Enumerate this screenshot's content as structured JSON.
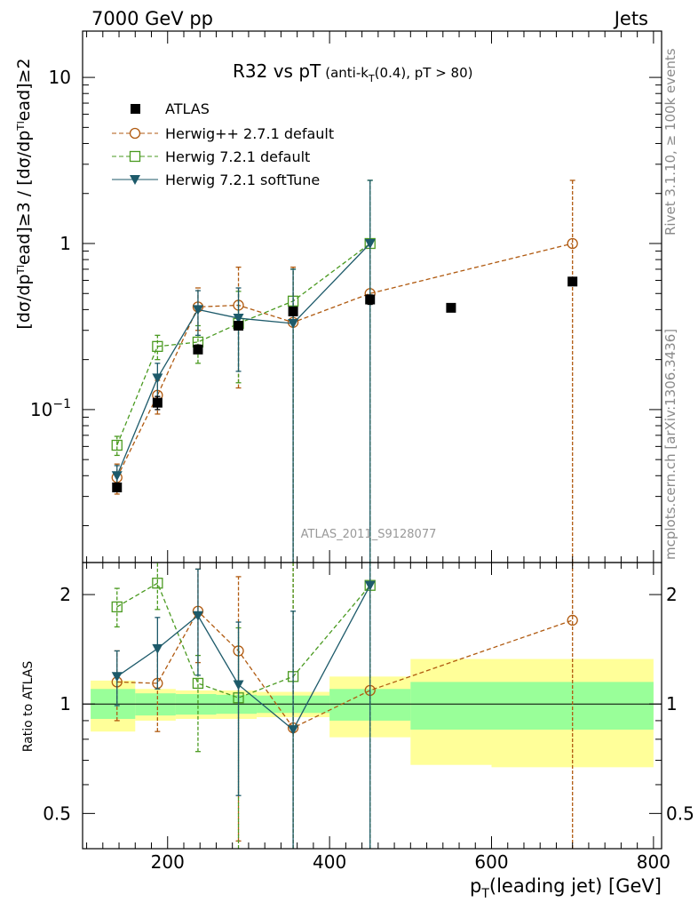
{
  "header": {
    "left": "7000 GeV pp",
    "right": "Jets"
  },
  "side_labels": {
    "rivet": "Rivet 3.1.10, ≥ 100k events",
    "mcplots": "mcplots.cern.ch [arXiv:1306.3436]"
  },
  "analysis_id": "ATLAS_2011_S9128077",
  "chart_data": [
    {
      "type": "scatter",
      "panel": "main",
      "title_main": "R32 vs pT",
      "title_sub": "(anti-k",
      "title_sub_t": "T",
      "title_sub_rest": "(0.4), pT > 80)",
      "ylabel": "[dσ/dpᵀˡead]≥3 / [dσ/dpᵀˡead]≥2",
      "xlabel": "p",
      "xlabel_sub": "T",
      "xlabel_rest": "(leading jet) [GeV]",
      "xlim": [
        95,
        810
      ],
      "ylim": [
        0.012,
        19
      ],
      "yscale": "log",
      "x_ticks": [
        200,
        400,
        600,
        800
      ],
      "y_ticks": [
        {
          "v": 0.1,
          "base": "10",
          "exp": "−1"
        },
        {
          "v": 1,
          "base": "1",
          "exp": ""
        },
        {
          "v": 10,
          "base": "10",
          "exp": ""
        }
      ],
      "legend_position": "top-left",
      "series": [
        {
          "name": "ATLAS",
          "color": "#000000",
          "marker": "square-filled",
          "dash": "none",
          "x": [
            137.5,
            187.5,
            237.5,
            287.5,
            355,
            450,
            550,
            700
          ],
          "y": [
            0.034,
            0.11,
            0.23,
            0.32,
            0.39,
            0.46,
            0.41,
            0.59
          ],
          "err": [
            [
              0.032,
              0.036
            ],
            [
              0.1,
              0.12
            ],
            [
              0.22,
              0.245
            ],
            [
              0.305,
              0.335
            ],
            [
              0.37,
              0.41
            ],
            [
              0.43,
              0.49
            ],
            [
              0.39,
              0.43
            ],
            [
              0.56,
              0.62
            ]
          ]
        },
        {
          "name": "Herwig++ 2.7.1 default",
          "color": "#b05a10",
          "marker": "circle-open",
          "dash": "5,3",
          "x": [
            137.5,
            187.5,
            237.5,
            287.5,
            355,
            450,
            700
          ],
          "y": [
            0.039,
            0.122,
            0.415,
            0.425,
            0.335,
            0.5,
            1.0
          ],
          "err": [
            [
              0.031,
              0.047
            ],
            [
              0.094,
              0.15
            ],
            [
              0.3,
              0.54
            ],
            [
              0.135,
              0.72
            ],
            [
              0.012,
              0.72
            ],
            [
              0.012,
              1.0
            ],
            [
              0.012,
              2.4
            ]
          ]
        },
        {
          "name": "Herwig 7.2.1 default",
          "color": "#4a9a20",
          "marker": "square-open",
          "dash": "5,3",
          "x": [
            137.5,
            187.5,
            237.5,
            287.5,
            355,
            450
          ],
          "y": [
            0.061,
            0.24,
            0.255,
            0.33,
            0.45,
            1.0
          ],
          "err": [
            [
              0.053,
              0.069
            ],
            [
              0.2,
              0.28
            ],
            [
              0.19,
              0.32
            ],
            [
              0.145,
              0.515
            ],
            [
              0.012,
              0.7
            ],
            [
              0.012,
              2.4
            ]
          ]
        },
        {
          "name": "Herwig 7.2.1 softTune",
          "color": "#1d5a6a",
          "marker": "triangle-down",
          "dash": "none",
          "x": [
            137.5,
            187.5,
            237.5,
            287.5,
            355,
            450
          ],
          "y": [
            0.04,
            0.155,
            0.4,
            0.355,
            0.33,
            1.0
          ],
          "err": [
            [
              0.034,
              0.046
            ],
            [
              0.12,
              0.19
            ],
            [
              0.28,
              0.52
            ],
            [
              0.17,
              0.54
            ],
            [
              0.012,
              0.7
            ],
            [
              0.012,
              2.4
            ]
          ]
        }
      ]
    },
    {
      "type": "scatter",
      "panel": "ratio",
      "ylabel": "Ratio to ATLAS",
      "xlim": [
        95,
        810
      ],
      "ylim": [
        0.4,
        2.45
      ],
      "yscale": "log",
      "y_ticks": [
        {
          "v": 0.5,
          "label": "0.5"
        },
        {
          "v": 1,
          "label": "1"
        },
        {
          "v": 2,
          "label": "2"
        }
      ],
      "bands": [
        {
          "x0": 105,
          "x1": 160,
          "inner": [
            0.91,
            1.1
          ],
          "outer": [
            0.84,
            1.16
          ]
        },
        {
          "x0": 160,
          "x1": 210,
          "inner": [
            0.93,
            1.07
          ],
          "outer": [
            0.9,
            1.1
          ]
        },
        {
          "x0": 210,
          "x1": 260,
          "inner": [
            0.935,
            1.065
          ],
          "outer": [
            0.91,
            1.09
          ]
        },
        {
          "x0": 260,
          "x1": 310,
          "inner": [
            0.94,
            1.06
          ],
          "outer": [
            0.91,
            1.09
          ]
        },
        {
          "x0": 310,
          "x1": 400,
          "inner": [
            0.945,
            1.055
          ],
          "outer": [
            0.92,
            1.08
          ]
        },
        {
          "x0": 400,
          "x1": 500,
          "inner": [
            0.9,
            1.1
          ],
          "outer": [
            0.81,
            1.19
          ]
        },
        {
          "x0": 500,
          "x1": 600,
          "inner": [
            0.85,
            1.15
          ],
          "outer": [
            0.68,
            1.33
          ]
        },
        {
          "x0": 600,
          "x1": 800,
          "inner": [
            0.85,
            1.15
          ],
          "outer": [
            0.67,
            1.33
          ]
        }
      ],
      "band_colors": {
        "inner": "#99ff99",
        "outer": "#ffff99"
      },
      "series": [
        {
          "name": "Herwig++ 2.7.1 default",
          "color": "#b05a10",
          "marker": "circle-open",
          "dash": "5,3",
          "x": [
            137.5,
            187.5,
            237.5,
            287.5,
            355,
            450,
            700
          ],
          "y": [
            1.15,
            1.14,
            1.8,
            1.4,
            0.86,
            1.09,
            1.7
          ],
          "err": [
            [
              0.9,
              1.4
            ],
            [
              0.84,
              1.42
            ],
            [
              1.3,
              2.35
            ],
            [
              0.42,
              2.24
            ],
            [
              0.3,
              2.5
            ],
            [
              0.3,
              2.5
            ],
            [
              0.3,
              2.5
            ]
          ]
        },
        {
          "name": "Herwig 7.2.1 default",
          "color": "#4a9a20",
          "marker": "square-open",
          "dash": "5,3",
          "x": [
            137.5,
            187.5,
            237.5,
            287.5,
            355,
            450
          ],
          "y": [
            1.85,
            2.15,
            1.14,
            1.04,
            1.19,
            2.12
          ],
          "err": [
            [
              1.63,
              2.08
            ],
            [
              1.82,
              2.48
            ],
            [
              0.74,
              1.36
            ],
            [
              0.4,
              1.62
            ],
            [
              0.3,
              2.5
            ],
            [
              0.3,
              2.5
            ]
          ]
        },
        {
          "name": "Herwig 7.2.1 softTune",
          "color": "#1d5a6a",
          "marker": "triangle-down",
          "dash": "none",
          "x": [
            137.5,
            187.5,
            237.5,
            287.5,
            355,
            450
          ],
          "y": [
            1.19,
            1.42,
            1.75,
            1.13,
            0.85,
            2.12
          ],
          "err": [
            [
              0.99,
              1.4
            ],
            [
              1.1,
              1.73
            ],
            [
              1.2,
              2.35
            ],
            [
              0.56,
              1.68
            ],
            [
              0.3,
              1.8
            ],
            [
              0.3,
              2.5
            ]
          ]
        }
      ]
    }
  ]
}
